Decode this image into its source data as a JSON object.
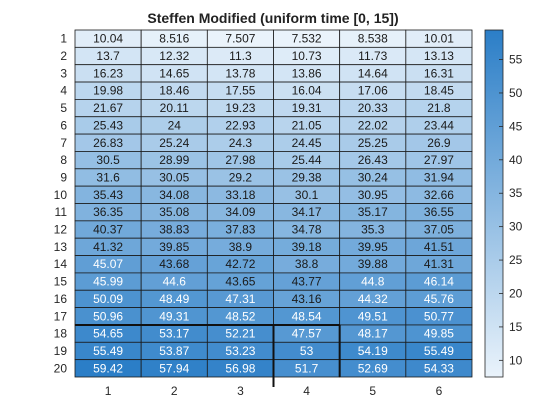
{
  "chart_data": {
    "type": "heatmap",
    "title": "Steffen Modified (uniform time [0, 15])",
    "xlabel": "",
    "ylabel": "",
    "x_categories": [
      "1",
      "2",
      "3",
      "4",
      "5",
      "6"
    ],
    "y_categories": [
      "1",
      "2",
      "3",
      "4",
      "5",
      "6",
      "7",
      "8",
      "9",
      "10",
      "11",
      "12",
      "13",
      "14",
      "15",
      "16",
      "17",
      "18",
      "19",
      "20"
    ],
    "values": [
      [
        "10.04",
        "8.516",
        "7.507",
        "7.532",
        "8.538",
        "10.01"
      ],
      [
        "13.7",
        "12.32",
        "11.3",
        "10.73",
        "11.73",
        "13.13"
      ],
      [
        "16.23",
        "14.65",
        "13.78",
        "13.86",
        "14.64",
        "16.31"
      ],
      [
        "19.98",
        "18.46",
        "17.55",
        "16.04",
        "17.06",
        "18.45"
      ],
      [
        "21.67",
        "20.11",
        "19.23",
        "19.31",
        "20.33",
        "21.8"
      ],
      [
        "25.43",
        "24",
        "22.93",
        "21.05",
        "22.02",
        "23.44"
      ],
      [
        "26.83",
        "25.24",
        "24.3",
        "24.45",
        "25.25",
        "26.9"
      ],
      [
        "30.5",
        "28.99",
        "27.98",
        "25.44",
        "26.43",
        "27.97"
      ],
      [
        "31.6",
        "30.05",
        "29.2",
        "29.38",
        "30.24",
        "31.94"
      ],
      [
        "35.43",
        "34.08",
        "33.18",
        "30.1",
        "30.95",
        "32.66"
      ],
      [
        "36.35",
        "35.08",
        "34.09",
        "34.17",
        "35.17",
        "36.55"
      ],
      [
        "40.37",
        "38.83",
        "37.83",
        "34.78",
        "35.3",
        "37.05"
      ],
      [
        "41.32",
        "39.85",
        "38.9",
        "39.18",
        "39.95",
        "41.51"
      ],
      [
        "45.07",
        "43.68",
        "42.72",
        "38.8",
        "39.88",
        "41.31"
      ],
      [
        "45.99",
        "44.6",
        "43.65",
        "43.77",
        "44.8",
        "46.14"
      ],
      [
        "50.09",
        "48.49",
        "47.31",
        "43.16",
        "44.32",
        "45.76"
      ],
      [
        "50.96",
        "49.31",
        "48.52",
        "48.54",
        "49.51",
        "50.77"
      ],
      [
        "54.65",
        "53.17",
        "52.21",
        "47.57",
        "48.17",
        "49.85"
      ],
      [
        "55.49",
        "53.87",
        "53.23",
        "53",
        "54.19",
        "55.49"
      ],
      [
        "59.42",
        "57.94",
        "56.98",
        "51.7",
        "52.69",
        "54.33"
      ]
    ],
    "colorbar": {
      "range": [
        7.507,
        59.42
      ],
      "ticks": [
        "10",
        "15",
        "20",
        "25",
        "30",
        "35",
        "40",
        "45",
        "50",
        "55"
      ],
      "low_color": "#eaf3fb",
      "high_color": "#2b7ec7"
    },
    "grid": true,
    "legend": "colorbar-right"
  }
}
